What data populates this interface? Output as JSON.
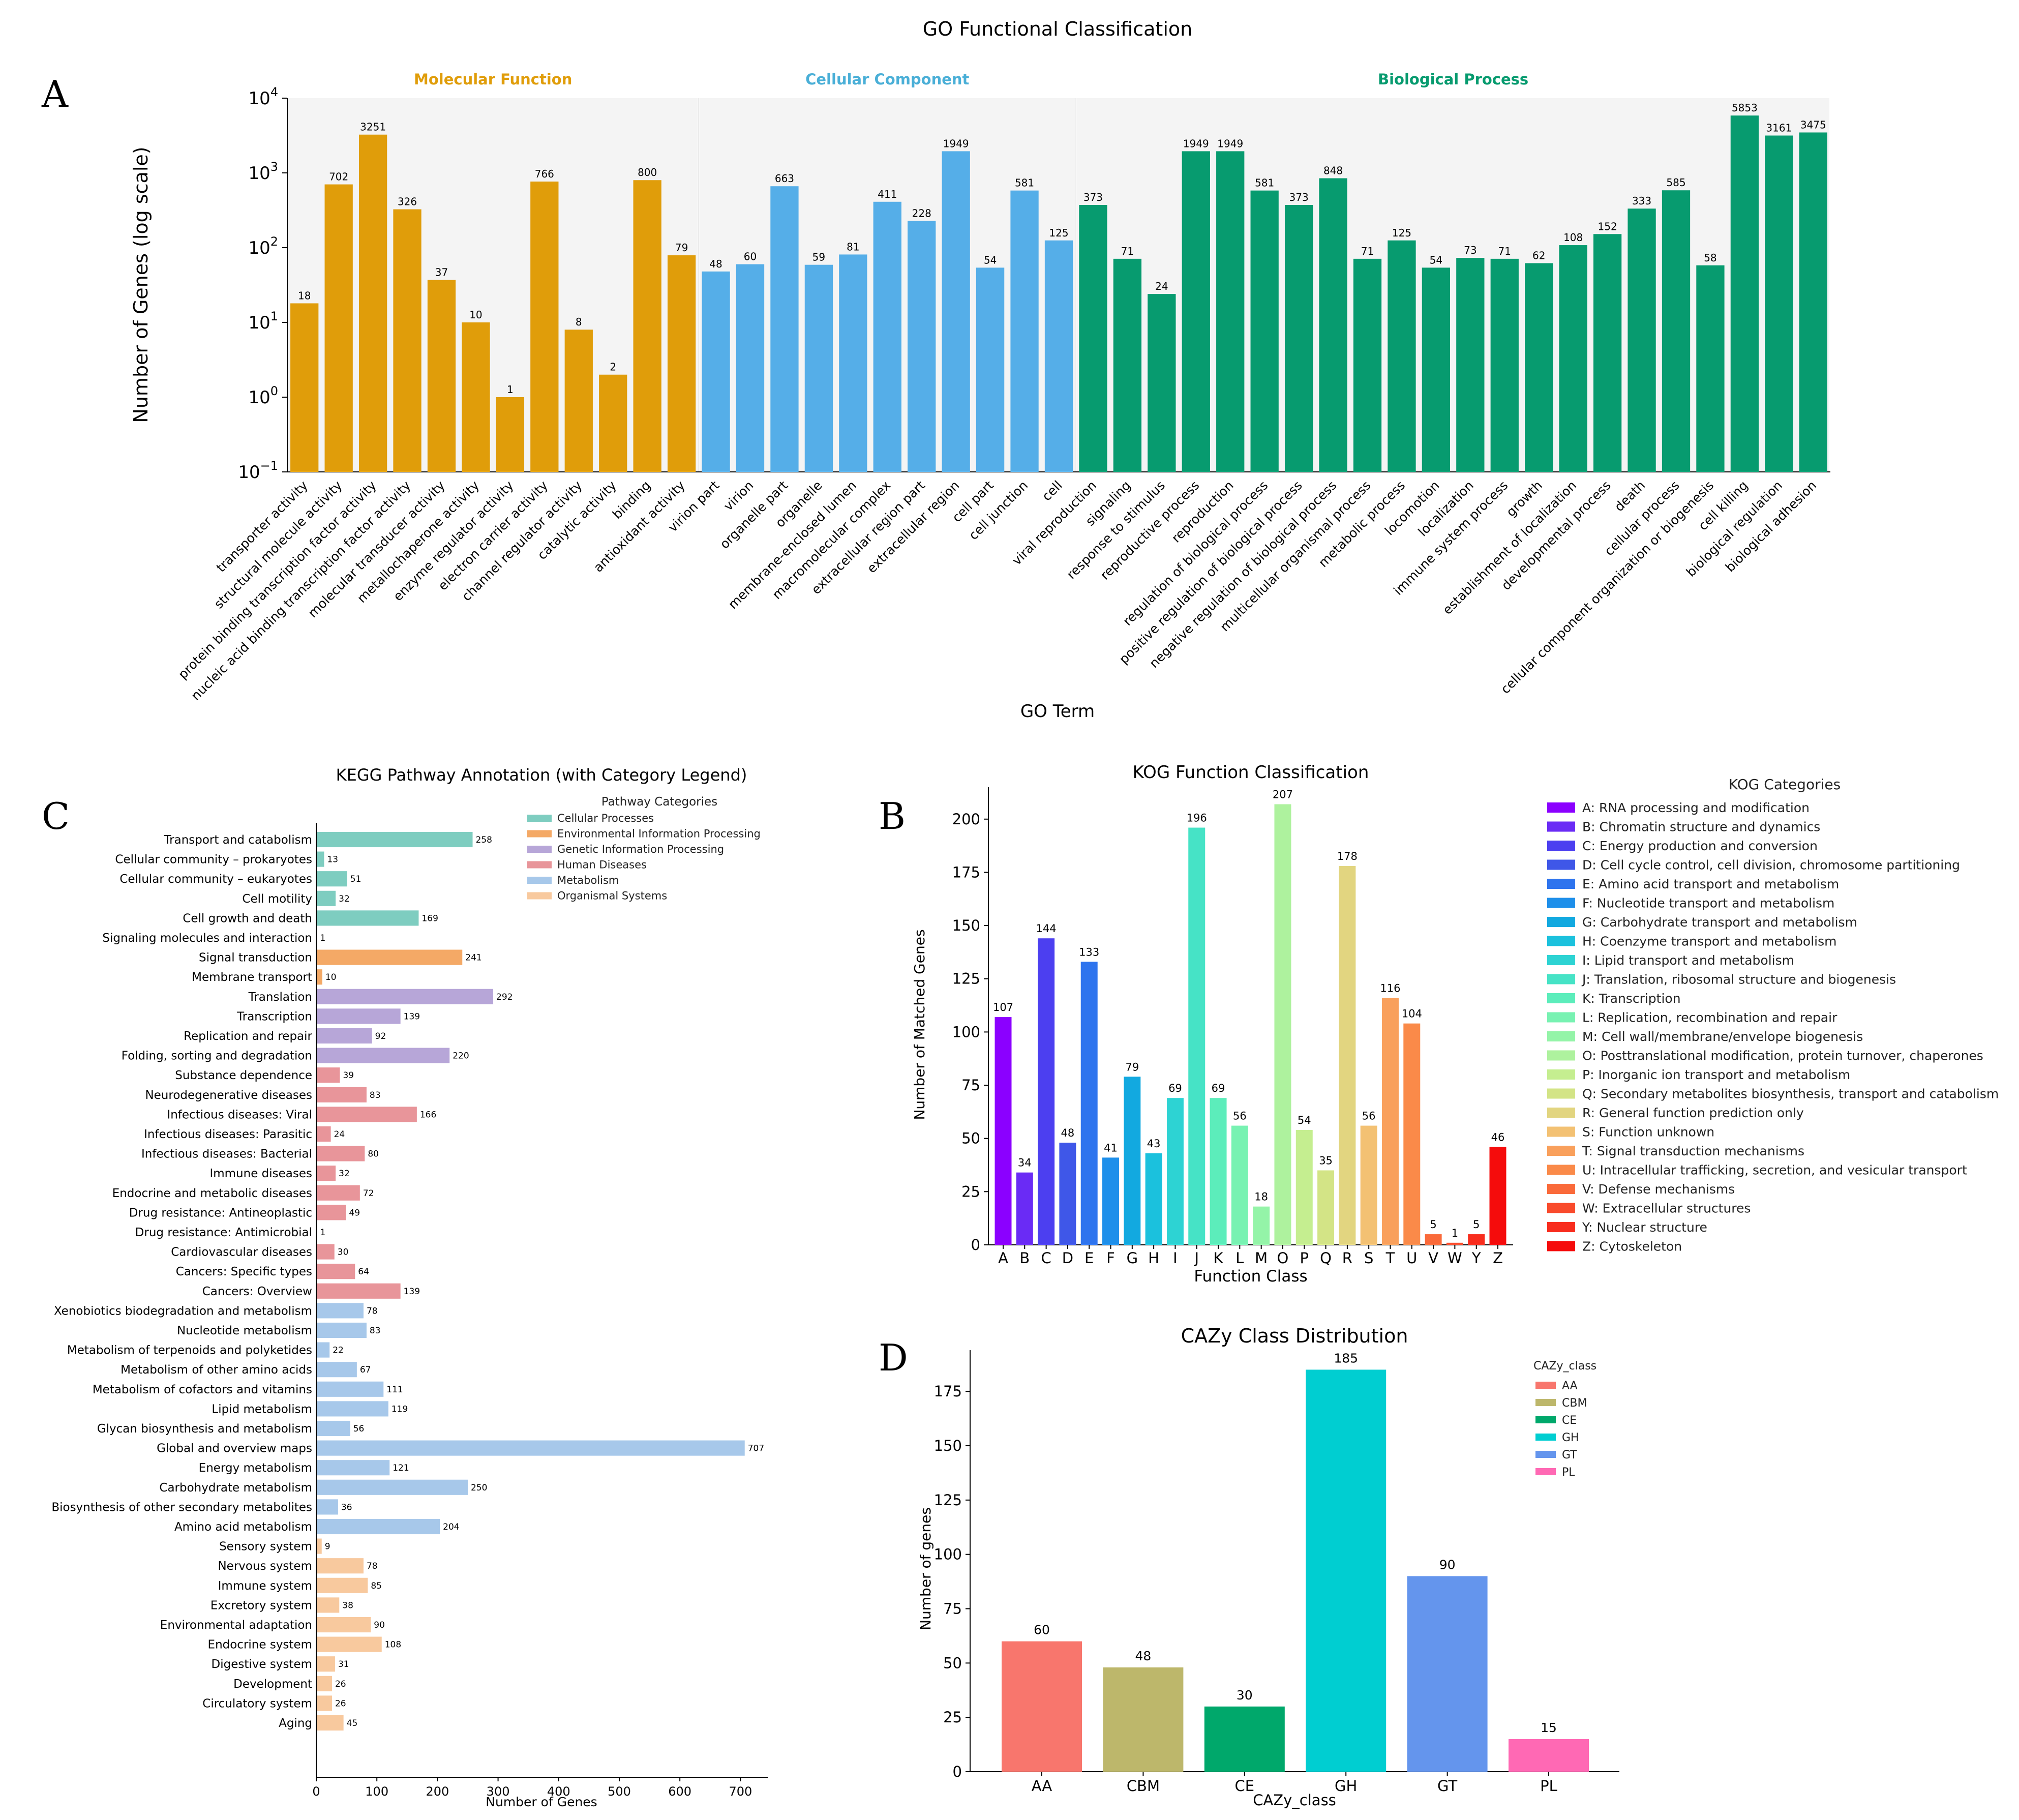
{
  "figure_title": "GO Functional Classification",
  "panel_letters": {
    "a": "A",
    "b": "B",
    "c": "C",
    "d": "D"
  },
  "colors": {
    "go_mf": "#E09D0A",
    "go_cc": "#55AEE8",
    "go_bp": "#079B6F",
    "go_mf_label": "#E09D0A",
    "go_cc_label": "#4AAFD7",
    "go_bp_label": "#079B6F",
    "go_shade": "#F4F4F4"
  },
  "chart_data": [
    {
      "id": "go",
      "type": "bar",
      "title": "GO Functional Classification",
      "xlabel": "GO Term",
      "ylabel": "Number of Genes (log scale)",
      "yscale": "log",
      "ylim": [
        0.1,
        10000
      ],
      "y_ticks": [
        {
          "value": 0.1,
          "base": "10",
          "exp": "−1"
        },
        {
          "value": 1,
          "base": "10",
          "exp": "0"
        },
        {
          "value": 10,
          "base": "10",
          "exp": "1"
        },
        {
          "value": 100,
          "base": "10",
          "exp": "2"
        },
        {
          "value": 1000,
          "base": "10",
          "exp": "3"
        },
        {
          "value": 10000,
          "base": "10",
          "exp": "4"
        }
      ],
      "groups": [
        {
          "name": "Molecular Function",
          "color_key": "go_mf",
          "categories": [
            {
              "term": "transporter activity",
              "value": 18
            },
            {
              "term": "structural molecule activity",
              "value": 702
            },
            {
              "term": "protein binding transcription factor activity",
              "value": 3251
            },
            {
              "term": "nucleic acid binding transcription factor activity",
              "value": 326
            },
            {
              "term": "molecular transducer activity",
              "value": 37
            },
            {
              "term": "metallochaperone activity",
              "value": 10
            },
            {
              "term": "enzyme regulator activity",
              "value": 1
            },
            {
              "term": "electron carrier activity",
              "value": 766
            },
            {
              "term": "channel regulator activity",
              "value": 8
            },
            {
              "term": "catalytic activity",
              "value": 2
            },
            {
              "term": "binding",
              "value": 800
            },
            {
              "term": "antioxidant activity",
              "value": 79
            }
          ]
        },
        {
          "name": "Cellular Component",
          "color_key": "go_cc",
          "categories": [
            {
              "term": "virion part",
              "value": 48
            },
            {
              "term": "virion",
              "value": 60
            },
            {
              "term": "organelle part",
              "value": 663
            },
            {
              "term": "organelle",
              "value": 59
            },
            {
              "term": "membrane-enclosed lumen",
              "value": 81
            },
            {
              "term": "macromolecular complex",
              "value": 411
            },
            {
              "term": "extracellular region part",
              "value": 228
            },
            {
              "term": "extracellular region",
              "value": 1949
            },
            {
              "term": "cell part",
              "value": 54
            },
            {
              "term": "cell junction",
              "value": 581
            },
            {
              "term": "cell",
              "value": 125
            }
          ]
        },
        {
          "name": "Biological Process",
          "color_key": "go_bp",
          "categories": [
            {
              "term": "viral reproduction",
              "value": 373
            },
            {
              "term": "signaling",
              "value": 71
            },
            {
              "term": "response to stimulus",
              "value": 24
            },
            {
              "term": "reproductive process",
              "value": 1949
            },
            {
              "term": "reproduction",
              "value": 1949
            },
            {
              "term": "regulation of biological process",
              "value": 581
            },
            {
              "term": "positive regulation of biological process",
              "value": 373
            },
            {
              "term": "negative regulation of biological process",
              "value": 848
            },
            {
              "term": "multicellular organismal process",
              "value": 71
            },
            {
              "term": "metabolic process",
              "value": 125
            },
            {
              "term": "locomotion",
              "value": 54
            },
            {
              "term": "localization",
              "value": 73
            },
            {
              "term": "immune system process",
              "value": 71
            },
            {
              "term": "growth",
              "value": 62
            },
            {
              "term": "establishment of localization",
              "value": 108
            },
            {
              "term": "developmental process",
              "value": 152
            },
            {
              "term": "death",
              "value": 333
            },
            {
              "term": "cellular process",
              "value": 585
            },
            {
              "term": "cellular component organization or biogenesis",
              "value": 58
            },
            {
              "term": "cell killing",
              "value": 5853
            },
            {
              "term": "biological regulation",
              "value": 3161
            },
            {
              "term": "biological adhesion",
              "value": 3475
            }
          ]
        }
      ]
    },
    {
      "id": "kog",
      "type": "bar",
      "title": "KOG Function Classification",
      "xlabel": "Function Class",
      "ylabel": "Number of Matched Genes",
      "ylim": [
        0,
        215
      ],
      "y_ticks": [
        0,
        25,
        50,
        75,
        100,
        125,
        150,
        175,
        200
      ],
      "legend_title": "KOG Categories",
      "legend_position": "right",
      "categories": [
        {
          "code": "A",
          "value": 107,
          "color": "#8B00FF",
          "label": "A: RNA processing and modification"
        },
        {
          "code": "B",
          "value": 34,
          "color": "#6A2BF5",
          "label": "B: Chromatin structure and dynamics"
        },
        {
          "code": "C",
          "value": 144,
          "color": "#4C3FF0",
          "label": "C: Energy production and conversion"
        },
        {
          "code": "D",
          "value": 48,
          "color": "#3F57E8",
          "label": "D: Cell cycle control, cell division, chromosome partitioning"
        },
        {
          "code": "E",
          "value": 133,
          "color": "#2E74EE",
          "label": "E: Amino acid transport and metabolism"
        },
        {
          "code": "F",
          "value": 41,
          "color": "#1E8FEA",
          "label": "F: Nucleotide transport and metabolism"
        },
        {
          "code": "G",
          "value": 79,
          "color": "#12A9E0",
          "label": "G: Carbohydrate transport and metabolism"
        },
        {
          "code": "H",
          "value": 43,
          "color": "#1BC1DD",
          "label": "H: Coenzyme transport and metabolism"
        },
        {
          "code": "I",
          "value": 69,
          "color": "#2DD3D3",
          "label": "I: Lipid transport and metabolism"
        },
        {
          "code": "J",
          "value": 196,
          "color": "#46E3C6",
          "label": "J: Translation, ribosomal structure and biogenesis"
        },
        {
          "code": "K",
          "value": 69,
          "color": "#5CEDBB",
          "label": "K: Transcription"
        },
        {
          "code": "L",
          "value": 56,
          "color": "#78F2B2",
          "label": "L: Replication, recombination and repair"
        },
        {
          "code": "M",
          "value": 18,
          "color": "#94F4A8",
          "label": "M: Cell wall/membrane/envelope biogenesis"
        },
        {
          "code": "O",
          "value": 207,
          "color": "#AEF29E",
          "label": "O: Posttranslational modification, protein turnover, chaperones"
        },
        {
          "code": "P",
          "value": 54,
          "color": "#C5EE90",
          "label": "P: Inorganic ion transport and metabolism"
        },
        {
          "code": "Q",
          "value": 35,
          "color": "#D3E486",
          "label": "Q: Secondary metabolites biosynthesis, transport and catabolism"
        },
        {
          "code": "R",
          "value": 178,
          "color": "#E2D580",
          "label": "R: General function prediction only"
        },
        {
          "code": "S",
          "value": 56,
          "color": "#F3C173",
          "label": "S: Function unknown"
        },
        {
          "code": "T",
          "value": 116,
          "color": "#F9A05C",
          "label": "T: Signal transduction mechanisms"
        },
        {
          "code": "U",
          "value": 104,
          "color": "#FA8A49",
          "label": "U: Intracellular trafficking, secretion, and vesicular transport"
        },
        {
          "code": "V",
          "value": 5,
          "color": "#FA6A3A",
          "label": "V: Defense mechanisms"
        },
        {
          "code": "W",
          "value": 1,
          "color": "#F94B2C",
          "label": "W: Extracellular structures"
        },
        {
          "code": "Y",
          "value": 5,
          "color": "#F82D1E",
          "label": "Y: Nuclear structure"
        },
        {
          "code": "Z",
          "value": 46,
          "color": "#F50C0C",
          "label": "Z: Cytoskeleton"
        }
      ]
    },
    {
      "id": "kegg",
      "type": "bar",
      "orientation": "horizontal",
      "title": "KEGG Pathway Annotation (with Category Legend)",
      "xlabel": "Number of Genes",
      "xlim": [
        0,
        745
      ],
      "x_ticks": [
        0,
        100,
        200,
        300,
        400,
        500,
        600,
        700
      ],
      "legend_title": "Pathway Categories",
      "legend_position": "top-right",
      "legend": [
        {
          "name": "Cellular Processes",
          "color": "#7ECDC0"
        },
        {
          "name": "Environmental Information Processing",
          "color": "#F4A966"
        },
        {
          "name": "Genetic Information Processing",
          "color": "#B7A6D8"
        },
        {
          "name": "Human Diseases",
          "color": "#E8959A"
        },
        {
          "name": "Metabolism",
          "color": "#A7C8EA"
        },
        {
          "name": "Organismal Systems",
          "color": "#F8C99E"
        }
      ],
      "pathways": [
        {
          "name": "Transport and catabolism",
          "value": 258,
          "cat": 0
        },
        {
          "name": "Cellular community – prokaryotes",
          "value": 13,
          "cat": 0
        },
        {
          "name": "Cellular community – eukaryotes",
          "value": 51,
          "cat": 0
        },
        {
          "name": "Cell motility",
          "value": 32,
          "cat": 0
        },
        {
          "name": "Cell growth and death",
          "value": 169,
          "cat": 0
        },
        {
          "name": "Signaling molecules and interaction",
          "value": 1,
          "cat": 1
        },
        {
          "name": "Signal transduction",
          "value": 241,
          "cat": 1
        },
        {
          "name": "Membrane transport",
          "value": 10,
          "cat": 1
        },
        {
          "name": "Translation",
          "value": 292,
          "cat": 2
        },
        {
          "name": "Transcription",
          "value": 139,
          "cat": 2
        },
        {
          "name": "Replication and repair",
          "value": 92,
          "cat": 2
        },
        {
          "name": "Folding, sorting and degradation",
          "value": 220,
          "cat": 2
        },
        {
          "name": "Substance dependence",
          "value": 39,
          "cat": 3
        },
        {
          "name": "Neurodegenerative diseases",
          "value": 83,
          "cat": 3
        },
        {
          "name": "Infectious diseases: Viral",
          "value": 166,
          "cat": 3
        },
        {
          "name": "Infectious diseases: Parasitic",
          "value": 24,
          "cat": 3
        },
        {
          "name": "Infectious diseases: Bacterial",
          "value": 80,
          "cat": 3
        },
        {
          "name": "Immune diseases",
          "value": 32,
          "cat": 3
        },
        {
          "name": "Endocrine and metabolic diseases",
          "value": 72,
          "cat": 3
        },
        {
          "name": "Drug resistance: Antineoplastic",
          "value": 49,
          "cat": 3
        },
        {
          "name": "Drug resistance: Antimicrobial",
          "value": 1,
          "cat": 3
        },
        {
          "name": "Cardiovascular diseases",
          "value": 30,
          "cat": 3
        },
        {
          "name": "Cancers: Specific types",
          "value": 64,
          "cat": 3
        },
        {
          "name": "Cancers: Overview",
          "value": 139,
          "cat": 3
        },
        {
          "name": "Xenobiotics biodegradation and metabolism",
          "value": 78,
          "cat": 4
        },
        {
          "name": "Nucleotide metabolism",
          "value": 83,
          "cat": 4
        },
        {
          "name": "Metabolism of terpenoids and polyketides",
          "value": 22,
          "cat": 4
        },
        {
          "name": "Metabolism of other amino acids",
          "value": 67,
          "cat": 4
        },
        {
          "name": "Metabolism of cofactors and vitamins",
          "value": 111,
          "cat": 4
        },
        {
          "name": "Lipid metabolism",
          "value": 119,
          "cat": 4
        },
        {
          "name": "Glycan biosynthesis and metabolism",
          "value": 56,
          "cat": 4
        },
        {
          "name": "Global and overview maps",
          "value": 707,
          "cat": 4
        },
        {
          "name": "Energy metabolism",
          "value": 121,
          "cat": 4
        },
        {
          "name": "Carbohydrate metabolism",
          "value": 250,
          "cat": 4
        },
        {
          "name": "Biosynthesis of other secondary metabolites",
          "value": 36,
          "cat": 4
        },
        {
          "name": "Amino acid metabolism",
          "value": 204,
          "cat": 4
        },
        {
          "name": "Sensory system",
          "value": 9,
          "cat": 5
        },
        {
          "name": "Nervous system",
          "value": 78,
          "cat": 5
        },
        {
          "name": "Immune system",
          "value": 85,
          "cat": 5
        },
        {
          "name": "Excretory system",
          "value": 38,
          "cat": 5
        },
        {
          "name": "Environmental adaptation",
          "value": 90,
          "cat": 5
        },
        {
          "name": "Endocrine system",
          "value": 108,
          "cat": 5
        },
        {
          "name": "Digestive system",
          "value": 31,
          "cat": 5
        },
        {
          "name": "Development",
          "value": 26,
          "cat": 5
        },
        {
          "name": "Circulatory system",
          "value": 26,
          "cat": 5
        },
        {
          "name": "Aging",
          "value": 45,
          "cat": 5
        }
      ]
    },
    {
      "id": "cazy",
      "type": "bar",
      "title": "CAZy Class Distribution",
      "xlabel": "CAZy_class",
      "ylabel": "Number of genes",
      "ylim": [
        0,
        194
      ],
      "y_ticks": [
        0,
        25,
        50,
        75,
        100,
        125,
        150,
        175
      ],
      "legend_title": "CAZy_class",
      "legend_position": "top-right",
      "categories": [
        {
          "name": "AA",
          "value": 60,
          "color": "#F8766D"
        },
        {
          "name": "CBM",
          "value": 48,
          "color": "#BDB76B"
        },
        {
          "name": "CE",
          "value": 30,
          "color": "#00A86B"
        },
        {
          "name": "GH",
          "value": 185,
          "color": "#00CED1"
        },
        {
          "name": "GT",
          "value": 90,
          "color": "#6495ED"
        },
        {
          "name": "PL",
          "value": 15,
          "color": "#FF69B4"
        }
      ]
    }
  ]
}
